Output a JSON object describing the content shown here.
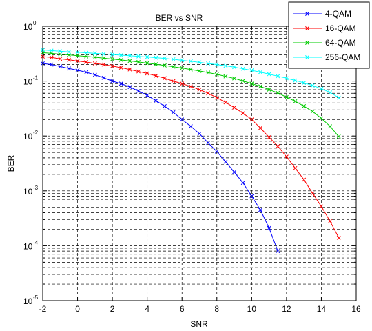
{
  "chart_data": {
    "type": "line",
    "title": "BER vs SNR",
    "xlabel": "SNR",
    "ylabel": "BER",
    "xlim": [
      -2,
      16
    ],
    "ylim": [
      1e-05,
      1
    ],
    "yscale": "log",
    "grid": true,
    "legend_position": "top-right",
    "x_ticks": [
      "-2",
      "0",
      "2",
      "4",
      "6",
      "8",
      "10",
      "12",
      "14",
      "16"
    ],
    "y_ticks": [
      {
        "base": "10",
        "exp": "0"
      },
      {
        "base": "10",
        "exp": "-1"
      },
      {
        "base": "10",
        "exp": "-2"
      },
      {
        "base": "10",
        "exp": "-3"
      },
      {
        "base": "10",
        "exp": "-4"
      },
      {
        "base": "10",
        "exp": "-5"
      }
    ],
    "series": [
      {
        "name": "4-QAM",
        "color": "#0000ff",
        "x": [
          -2,
          -1.5,
          -1,
          -0.5,
          0,
          0.5,
          1,
          1.5,
          2,
          2.5,
          3,
          3.5,
          4,
          4.5,
          5,
          5.5,
          6,
          6.5,
          7,
          7.5,
          8,
          8.5,
          9,
          9.5,
          10,
          10.5,
          11,
          11.5
        ],
        "y": [
          0.21,
          0.2,
          0.185,
          0.17,
          0.158,
          0.145,
          0.13,
          0.115,
          0.1,
          0.09,
          0.078,
          0.066,
          0.055,
          0.044,
          0.035,
          0.027,
          0.02,
          0.015,
          0.011,
          0.0075,
          0.0052,
          0.0034,
          0.0022,
          0.0014,
          0.0008,
          0.00045,
          0.00021,
          8e-05
        ]
      },
      {
        "name": "16-QAM",
        "color": "#ff0000",
        "x": [
          -2,
          -1.5,
          -1,
          -0.5,
          0,
          0.5,
          1,
          1.5,
          2,
          2.5,
          3,
          3.5,
          4,
          4.5,
          5,
          5.5,
          6,
          6.5,
          7,
          7.5,
          8,
          8.5,
          9,
          9.5,
          10,
          10.5,
          11,
          11.5,
          12,
          12.5,
          13,
          13.5,
          14,
          14.5,
          15
        ],
        "y": [
          0.28,
          0.27,
          0.255,
          0.245,
          0.232,
          0.222,
          0.21,
          0.2,
          0.188,
          0.176,
          0.163,
          0.15,
          0.138,
          0.125,
          0.113,
          0.1,
          0.09,
          0.08,
          0.07,
          0.06,
          0.05,
          0.041,
          0.033,
          0.026,
          0.02,
          0.014,
          0.0095,
          0.0065,
          0.0042,
          0.0026,
          0.0016,
          0.0009,
          0.00052,
          0.00028,
          0.00014
        ]
      },
      {
        "name": "64-QAM",
        "color": "#00cc00",
        "x": [
          -2,
          -1.5,
          -1,
          -0.5,
          0,
          0.5,
          1,
          1.5,
          2,
          2.5,
          3,
          3.5,
          4,
          4.5,
          5,
          5.5,
          6,
          6.5,
          7,
          7.5,
          8,
          8.5,
          9,
          9.5,
          10,
          10.5,
          11,
          11.5,
          12,
          12.5,
          13,
          13.5,
          14,
          14.5,
          15
        ],
        "y": [
          0.33,
          0.32,
          0.31,
          0.3,
          0.29,
          0.282,
          0.272,
          0.262,
          0.252,
          0.243,
          0.233,
          0.223,
          0.213,
          0.203,
          0.193,
          0.183,
          0.173,
          0.163,
          0.153,
          0.143,
          0.133,
          0.122,
          0.112,
          0.101,
          0.09,
          0.08,
          0.07,
          0.061,
          0.051,
          0.043,
          0.035,
          0.028,
          0.021,
          0.015,
          0.0098
        ]
      },
      {
        "name": "256-QAM",
        "color": "#00ffff",
        "x": [
          -2,
          -1.5,
          -1,
          -0.5,
          0,
          0.5,
          1,
          1.5,
          2,
          2.5,
          3,
          3.5,
          4,
          4.5,
          5,
          5.5,
          6,
          6.5,
          7,
          7.5,
          8,
          8.5,
          9,
          9.5,
          10,
          10.5,
          11,
          11.5,
          12,
          12.5,
          13,
          13.5,
          14,
          14.5,
          15
        ],
        "y": [
          0.37,
          0.36,
          0.35,
          0.34,
          0.335,
          0.328,
          0.32,
          0.312,
          0.305,
          0.297,
          0.29,
          0.282,
          0.275,
          0.267,
          0.26,
          0.25,
          0.24,
          0.23,
          0.22,
          0.21,
          0.2,
          0.19,
          0.18,
          0.168,
          0.157,
          0.146,
          0.134,
          0.123,
          0.113,
          0.103,
          0.093,
          0.083,
          0.073,
          0.062,
          0.05
        ]
      }
    ]
  }
}
